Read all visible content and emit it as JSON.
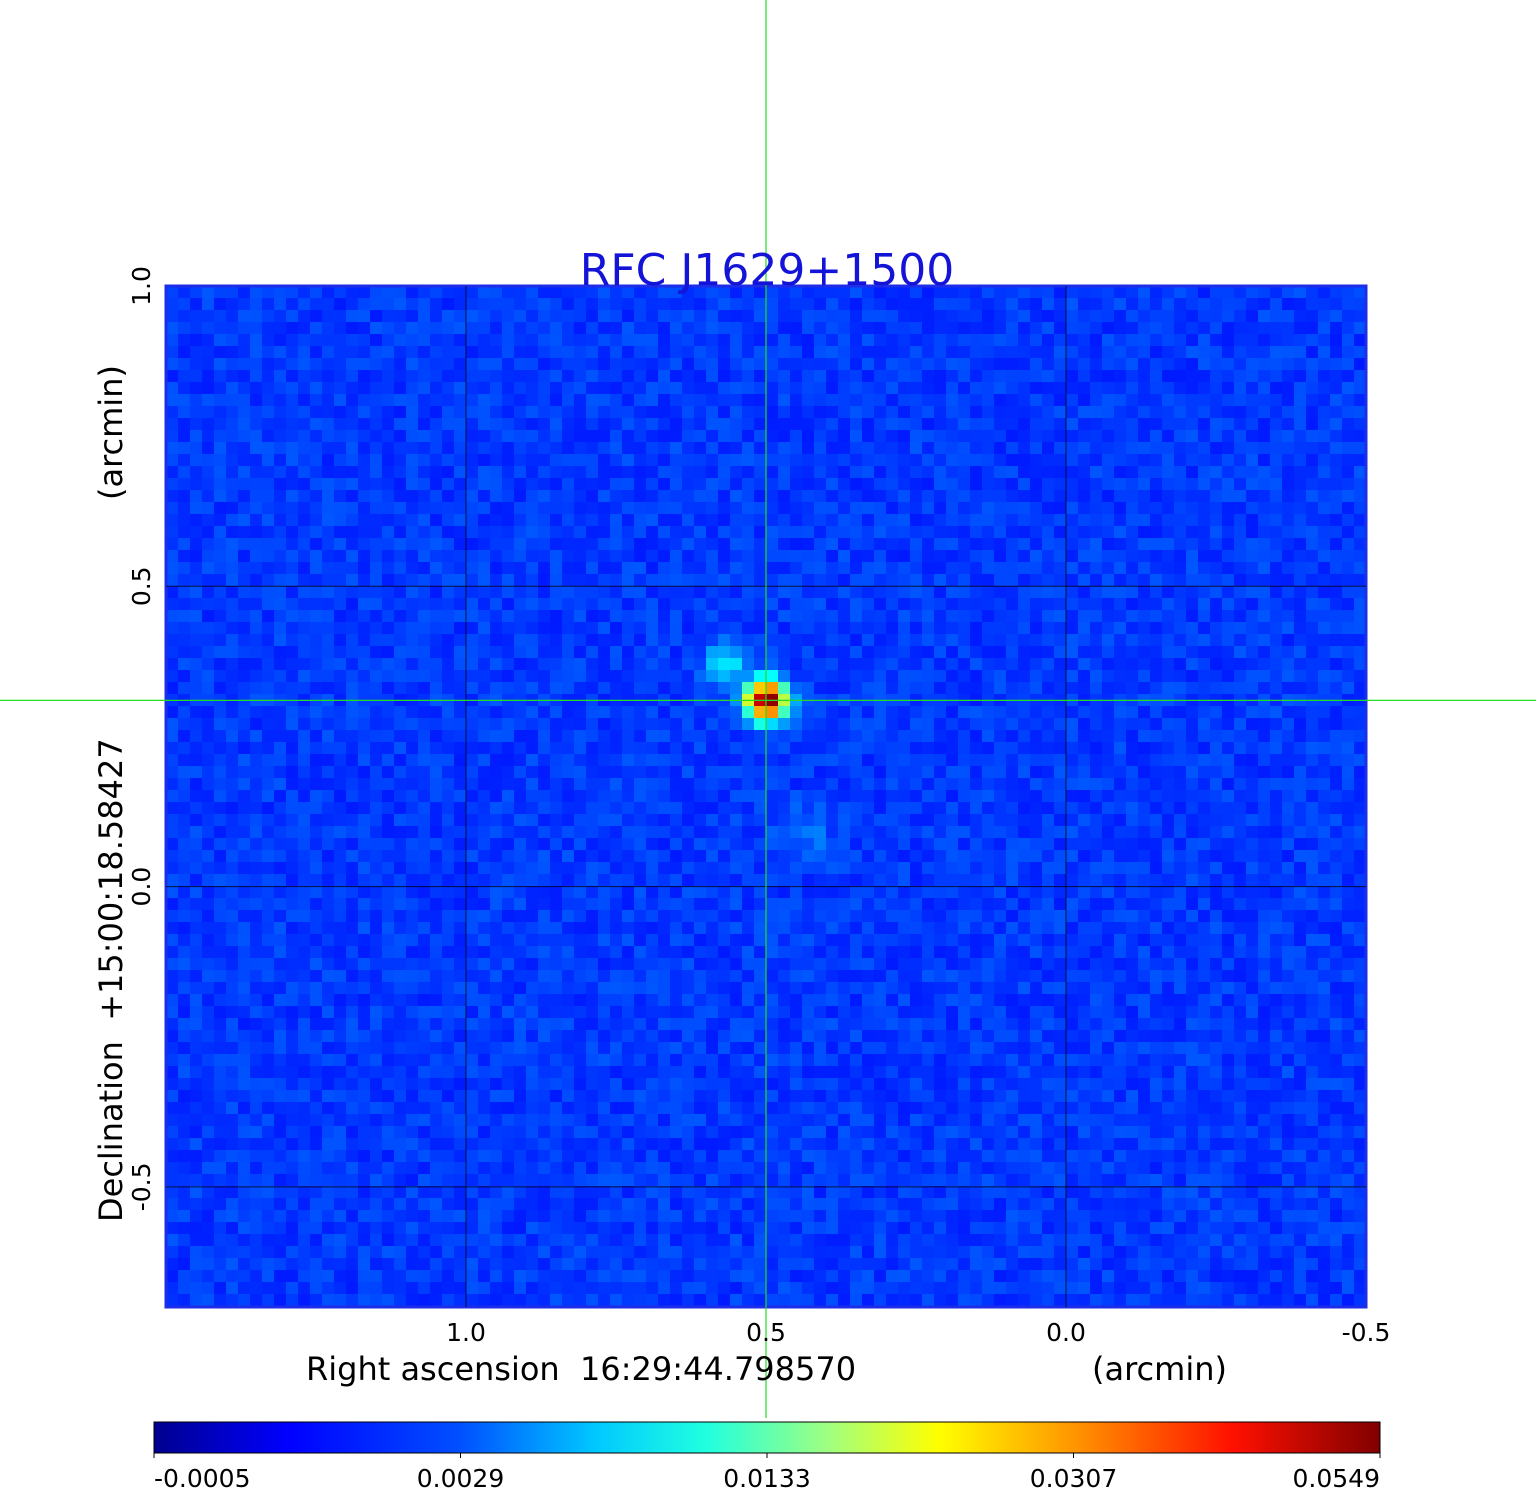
{
  "chart_data": {
    "type": "heatmap",
    "title": "RFC J1629+1500",
    "colormap": "jet",
    "xlabel": {
      "left": "Right ascension  16:29:44.798570",
      "right": "(arcmin)"
    },
    "ylabel": {
      "left": "Declination  +15:00:18.58427",
      "right": "(arcmin)"
    },
    "x_ticks": [
      "1.0",
      "0.5",
      "0.0",
      "-0.5"
    ],
    "y_ticks": [
      "1.0",
      "0.5",
      "0.0",
      "-0.5"
    ],
    "xlim": [
      1.5,
      -0.5
    ],
    "ylim": [
      -0.7,
      1.0
    ],
    "grid": true,
    "crosshair": {
      "x": 0.5,
      "y": 0.31,
      "color": "#22dd22"
    },
    "source_peak": {
      "x": 0.5,
      "y": 0.31,
      "value": 0.0549
    },
    "colorbar": {
      "tick_labels": [
        "-0.0005",
        "0.0029",
        "0.0133",
        "0.0307",
        "0.0549"
      ],
      "min": -0.0005,
      "max": 0.0549
    }
  }
}
